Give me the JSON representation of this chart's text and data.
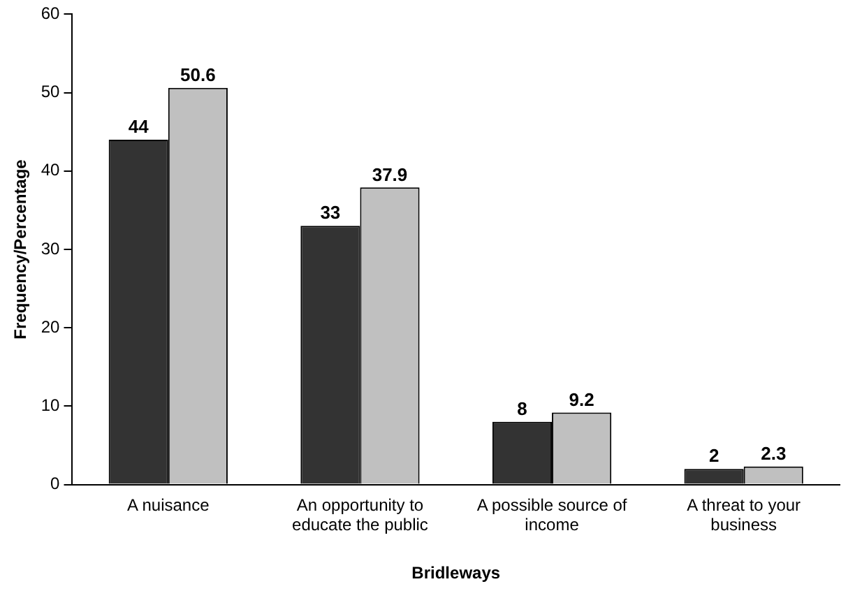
{
  "chart_data": {
    "type": "bar",
    "xlabel": "Bridleways",
    "ylabel": "Frequency/Percentage",
    "categories": [
      "A nuisance",
      "An opportunity to educate the public",
      "A possible source of income",
      "A threat to your business"
    ],
    "series": [
      {
        "color": "#333333",
        "values": [
          44,
          33,
          8,
          2
        ]
      },
      {
        "color": "#c0c0c0",
        "values": [
          50.6,
          37.9,
          9.2,
          2.3
        ]
      }
    ],
    "ylim": [
      0,
      60
    ],
    "yticks": [
      0,
      10,
      20,
      30,
      40,
      50,
      60
    ],
    "grid": false,
    "legend": false,
    "data_labels": true
  }
}
